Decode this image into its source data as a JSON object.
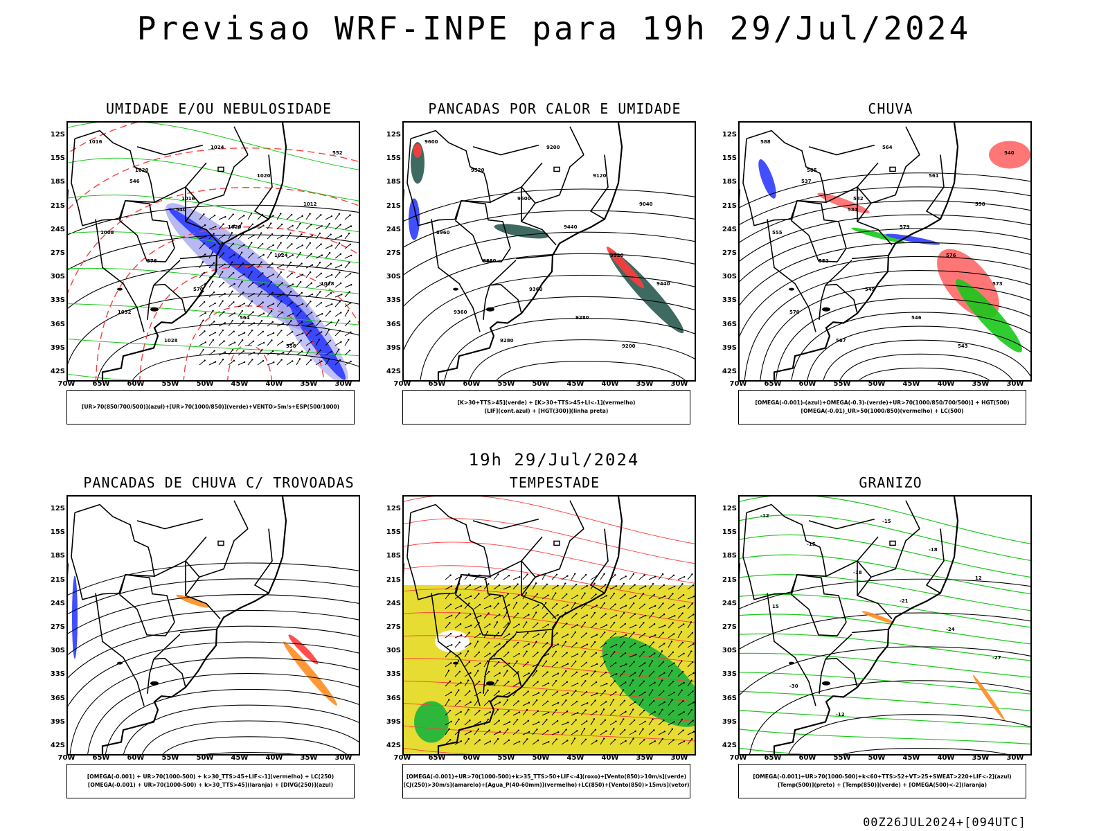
{
  "header": {
    "title": "Previsao WRF-INPE  para 19h 29/Jul/2024",
    "middle_date": "19h 29/Jul/2024",
    "footer": "00Z26JUL2024+[094UTC]"
  },
  "axes": {
    "lat_ticks": [
      "12S",
      "15S",
      "18S",
      "21S",
      "24S",
      "27S",
      "30S",
      "33S",
      "36S",
      "39S",
      "42S"
    ],
    "lon_ticks": [
      "70W",
      "65W",
      "60W",
      "55W",
      "50W",
      "45W",
      "40W",
      "35W",
      "30W"
    ]
  },
  "colors": {
    "blue": "#2c3cff",
    "green": "#19c819",
    "red": "#ff3c3c",
    "orange": "#ff8c1e",
    "yellow": "#e6dc32",
    "dark_teal": "#2a5a50",
    "lavender": "#9a9aee"
  },
  "panels": [
    {
      "id": "umidade",
      "title": "UMIDADE E/OU NEBULOSIDADE",
      "legend": [
        "[UR>70(850/700/500)](azul)+[UR>70(1000/850)](verde)+VENTO>5m/s+ESP(500/1000)"
      ],
      "contour_labels": [
        "1016",
        "1020",
        "1016",
        "1020",
        "1024",
        "1028",
        "1032",
        "1028",
        "1024",
        "1020",
        "1012",
        "1008",
        "576",
        "570",
        "564",
        "558",
        "552",
        "546",
        "540"
      ]
    },
    {
      "id": "pancadas_calor",
      "title": "PANCADAS POR CALOR E UMIDADE",
      "legend": [
        "[K>30+TTS>45](verde) + [K>30+TTS>45+LI<-1](vermelho)",
        "[LIF](cont.azul) + [HGT(300)](linha preta)"
      ],
      "contour_labels": [
        "9600",
        "9520",
        "9600",
        "9440",
        "9520",
        "9440",
        "9360",
        "9280",
        "9200",
        "9120",
        "9040",
        "8960",
        "8880",
        "9360",
        "9280",
        "9200"
      ]
    },
    {
      "id": "chuva",
      "title": "CHUVA",
      "legend": [
        "[OMEGA(-0.001)-(azul)+OMEGA(-0.3)-(verde)+UR>70(1000/850/700/500)] + HGT(500)",
        "[OMEGA(-0.01)_UR>50(1000/850)(vermelho) + LC(500)"
      ],
      "contour_labels": [
        "588",
        "585",
        "582",
        "579",
        "576",
        "573",
        "570",
        "567",
        "564",
        "561",
        "558",
        "555",
        "552",
        "549",
        "546",
        "543",
        "540",
        "537",
        "534"
      ]
    },
    {
      "id": "pancadas_trovoadas",
      "title": "PANCADAS DE CHUVA C/ TROVOADAS",
      "legend": [
        "[OMEGA(-0.001) + UR>70(1000-500) + k>30_TTS>45+LIF<-1](vermelho) + LC(250)",
        "[OMEGA(-0.001) + UR>70(1000-500) + k>30_TTS>45](laranja) + [DIVG(250)](azul)"
      ],
      "contour_labels": []
    },
    {
      "id": "tempestade",
      "title": "TEMPESTADE",
      "legend": [
        "[OMEGA(-0.001)+UR>70(1000-500)+k>35_TTS>50+LIF<-4](roxo)+[Vento(850)>10m/s](verde)",
        "[CJ(250)>30m/s](amarelo)+[Agua_P(40-60mm)](vermelho)+LC(850)+[Vento(850)>15m/s](vetor)"
      ],
      "contour_labels": []
    },
    {
      "id": "granizo",
      "title": "GRANIZO",
      "legend": [
        "[OMEGA(-0.001)+UR>70(1000-500)+k<60+TTS>52+VT>25+SWEAT>220+LIF<-2](azul)",
        "[Temp(500)](preto) + [Temp(850)](verde) + [OMEGA(500)<-2](laranja)"
      ],
      "contour_labels": [
        "-12",
        "-15",
        "-18",
        "-21",
        "-24",
        "-27",
        "-30",
        "-12",
        "-15",
        "-18",
        "12",
        "15"
      ]
    }
  ]
}
